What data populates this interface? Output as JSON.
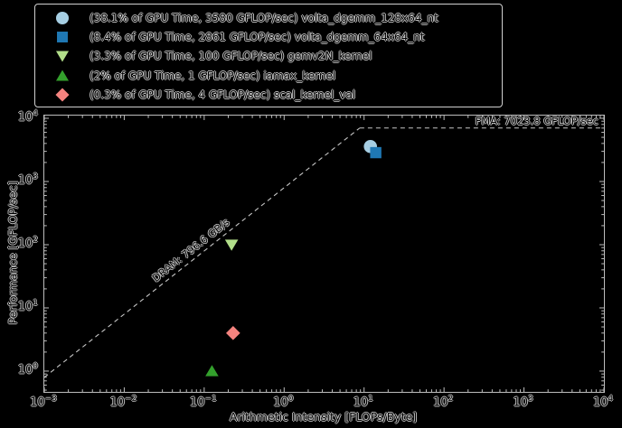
{
  "figure": {
    "background": "#000000",
    "fma_annotation": "FMA: 7023.8 GFLOP/sec",
    "dram_annotation": "DRAM: 796.6 GB/s"
  },
  "chart_data": {
    "type": "scatter",
    "title": "",
    "xlabel": "Arithmetic Intensity [FLOPs/Byte]",
    "ylabel": "Performance [GFLOP/sec]",
    "x_scale": "log",
    "y_scale": "log",
    "xlim_log": [
      -3,
      4
    ],
    "ylim_log": [
      -0.329,
      4.043
    ],
    "x_tick_exponents": [
      -3,
      -2,
      -1,
      0,
      1,
      2,
      3,
      4
    ],
    "y_tick_exponents": [
      0,
      1,
      2,
      3,
      4
    ],
    "grid": false,
    "legend_position": "top-left",
    "rooflines": {
      "dram_bandwidth_gb_per_s": 796.6,
      "fma_peak_gflops": 7023.8,
      "line_color": "#c6c6c6"
    },
    "series": [
      {
        "label": "(38.1% of GPU Time, 3580 GFLOP/sec) volta_dgemm_128x64_nt",
        "marker": "circle",
        "color": "#a6cee3",
        "ai": 12,
        "gflops": 3580
      },
      {
        "label": "(8.4% of GPU Time, 2861 GFLOP/sec) volta_dgemm_64x64_nt",
        "marker": "square",
        "color": "#1f78b4",
        "ai": 14,
        "gflops": 2861
      },
      {
        "label": "(3.3% of GPU Time, 100 GFLOP/sec) gemv2N_kernel",
        "marker": "triangle-down",
        "color": "#b2df8a",
        "ai": 0.22,
        "gflops": 100
      },
      {
        "label": "(2% of GPU Time, 1 GFLOP/sec) iamax_kernel",
        "marker": "triangle-up",
        "color": "#33a02c",
        "ai": 0.125,
        "gflops": 1
      },
      {
        "label": "(0.3% of GPU Time, 4 GFLOP/sec) scal_kernel_val",
        "marker": "diamond",
        "color": "#f4837f",
        "ai": 0.23,
        "gflops": 4
      }
    ],
    "tick_color": "#bdbdbd",
    "spine_color": "#bdbdbd"
  }
}
